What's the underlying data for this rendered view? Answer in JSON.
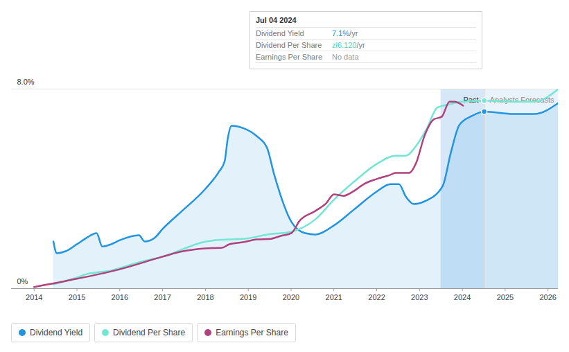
{
  "chart_data": {
    "type": "line",
    "xlim": [
      2013.47,
      2026.24
    ],
    "xticks": [
      2014,
      2015,
      2016,
      2017,
      2018,
      2019,
      2020,
      2021,
      2022,
      2023,
      2024,
      2025,
      2026
    ],
    "ylim": [
      0,
      8
    ],
    "yticks": [
      {
        "value": 0,
        "label": "0%"
      },
      {
        "value": 8,
        "label": "8.0%"
      }
    ],
    "y2lim": [
      0,
      6.5
    ],
    "tick_labels": "y",
    "grid": true,
    "series": [
      {
        "name": "Dividend Yield",
        "color": "#2394df",
        "axis": "y",
        "x": [
          2014.45,
          2014.53,
          2014.74,
          2015.0,
          2015.22,
          2015.46,
          2015.59,
          2015.8,
          2016.0,
          2016.45,
          2016.58,
          2016.81,
          2017.0,
          2017.42,
          2018.0,
          2018.31,
          2018.45,
          2018.52,
          2018.61,
          2018.87,
          2019.2,
          2019.44,
          2019.6,
          2020.01,
          2020.33,
          2020.57,
          2021.0,
          2021.47,
          2022.0,
          2022.32,
          2022.52,
          2022.68,
          2022.87,
          2023.12,
          2023.54,
          2023.73,
          2023.93,
          2024.22,
          2024.51,
          2025.19,
          2025.68,
          2026.24
        ],
        "values": [
          1.89,
          1.42,
          1.5,
          1.78,
          2.03,
          2.22,
          1.69,
          1.78,
          1.94,
          2.14,
          1.89,
          2.03,
          2.39,
          3.06,
          4.0,
          4.67,
          5.11,
          6.0,
          6.53,
          6.44,
          6.11,
          5.64,
          4.61,
          2.67,
          2.22,
          2.17,
          2.53,
          3.17,
          3.89,
          4.19,
          4.19,
          3.69,
          3.39,
          3.5,
          4.11,
          5.44,
          6.56,
          6.92,
          7.1,
          7.0,
          7.0,
          7.44
        ]
      },
      {
        "name": "Dividend Per Share",
        "color": "#73e6d3",
        "axis": "y2",
        "x": [
          2014.45,
          2015.0,
          2015.22,
          2015.8,
          2016.45,
          2017.0,
          2018.0,
          2018.24,
          2018.95,
          2019.44,
          2020.0,
          2020.57,
          2021.0,
          2021.47,
          2022.0,
          2022.44,
          2022.68,
          2022.92,
          2023.17,
          2023.41,
          2023.7,
          2023.98,
          2024.51,
          2025.19,
          2025.68,
          2026.24
        ],
        "values": [
          0.14,
          0.36,
          0.47,
          0.59,
          0.86,
          1.04,
          1.53,
          1.58,
          1.63,
          1.76,
          1.85,
          2.26,
          2.89,
          3.48,
          4.06,
          4.33,
          4.33,
          4.65,
          5.21,
          5.89,
          6.0,
          6.09,
          6.12,
          6.09,
          6.09,
          6.5
        ]
      },
      {
        "name": "Earnings Per Share",
        "color": "#b0417e",
        "axis": "y2",
        "x": [
          2014.0,
          2015.0,
          2016.0,
          2017.0,
          2017.42,
          2018.0,
          2018.39,
          2018.55,
          2018.87,
          2019.2,
          2019.52,
          2019.77,
          2020.01,
          2020.2,
          2020.57,
          2020.82,
          2021.0,
          2021.22,
          2021.47,
          2021.71,
          2022.0,
          2022.31,
          2022.44,
          2022.76,
          2022.92,
          2023.12,
          2023.33,
          2023.52,
          2023.7,
          2023.81,
          2024.02
        ],
        "values": [
          0.05,
          0.32,
          0.63,
          1.04,
          1.2,
          1.31,
          1.33,
          1.44,
          1.51,
          1.6,
          1.62,
          1.72,
          1.81,
          2.21,
          2.53,
          2.78,
          3.07,
          3.02,
          3.18,
          3.41,
          3.57,
          3.7,
          3.77,
          3.77,
          4.09,
          4.99,
          5.51,
          5.6,
          6.09,
          6.09,
          5.96
        ]
      }
    ],
    "annotations": {
      "past_label": "Past",
      "forecast_label": "Analysts Forecasts",
      "past_start": 2023.5,
      "today": 2024.51
    },
    "tooltip": {
      "date": "Jul 04 2024",
      "rows": [
        {
          "label": "Dividend Yield",
          "value": "7.1%",
          "unit": " /yr",
          "color": "#2394df"
        },
        {
          "label": "Dividend Per Share",
          "value": "zł6.120",
          "unit": " /yr",
          "color": "#4fd3bf"
        },
        {
          "label": "Earnings Per Share",
          "value": "No data",
          "unit": "",
          "color": "#999999"
        }
      ]
    }
  }
}
